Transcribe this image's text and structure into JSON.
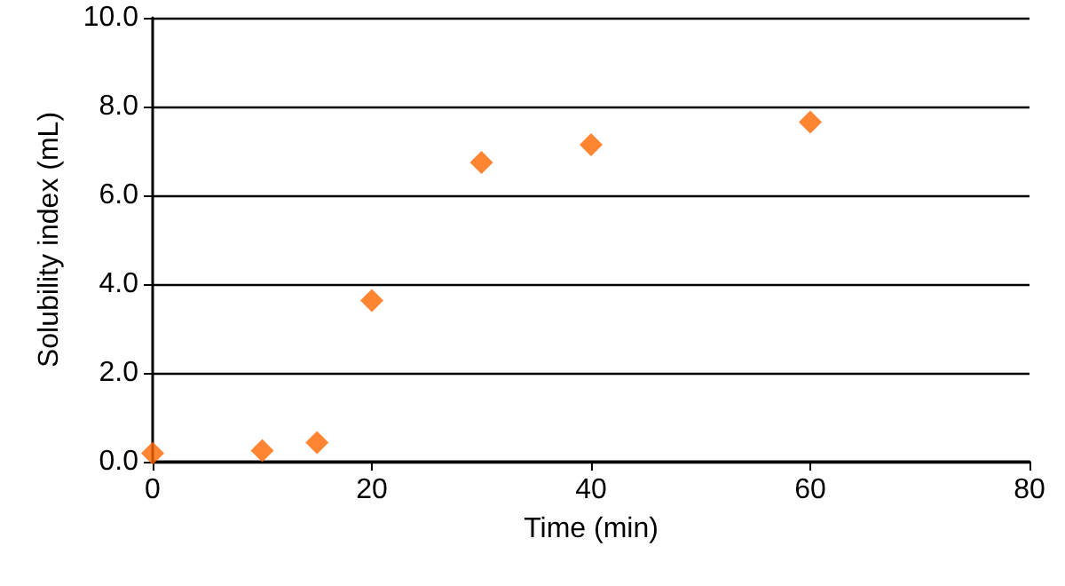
{
  "chart_data": {
    "type": "scatter",
    "xlabel": "Time (min)",
    "ylabel": "Solubility index (mL)",
    "x": [
      0,
      10,
      15,
      20,
      30,
      40,
      60
    ],
    "series": [
      {
        "color": "#ff6600",
        "values": [
          0.19,
          0.25,
          0.43,
          3.63,
          6.74,
          7.14,
          7.65
        ]
      }
    ],
    "xlim": [
      0,
      80
    ],
    "xticks": [
      0,
      20,
      40,
      60,
      80
    ],
    "ylim": [
      0,
      10
    ],
    "yticks": [
      {
        "value": 0,
        "label": "0.0"
      },
      {
        "value": 2,
        "label": "2.0"
      },
      {
        "value": 4,
        "label": "4.0"
      },
      {
        "value": 6,
        "label": "6.0"
      },
      {
        "value": 8,
        "label": "8.0"
      },
      {
        "value": 10,
        "label": "10.0"
      }
    ],
    "grid": "y",
    "marker": "diamond"
  }
}
